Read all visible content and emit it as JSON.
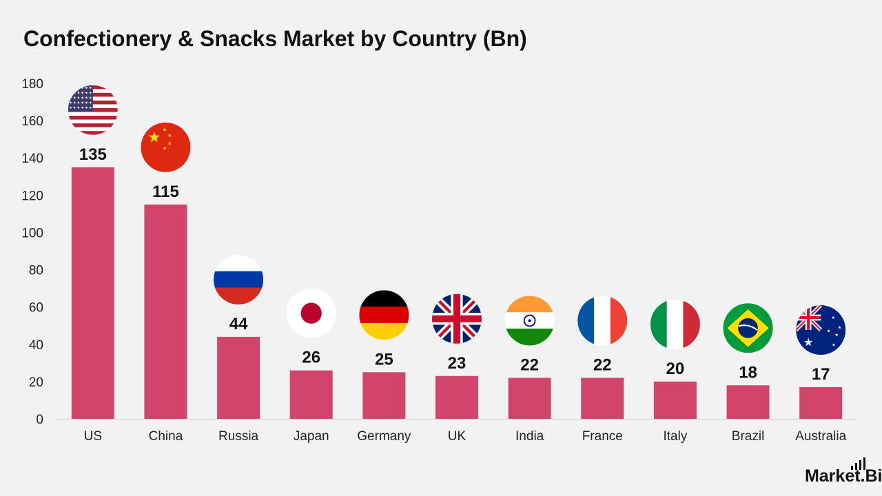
{
  "brand": {
    "text": "Market.Biz"
  },
  "colors": {
    "bar": "#d2456a",
    "background": "#f2f2f2",
    "axis": "#d0d0d0"
  },
  "chart_data": {
    "type": "bar",
    "title": "Confectionery & Snacks Market by Country (Bn)",
    "xlabel": "",
    "ylabel": "",
    "ylim": [
      0,
      180
    ],
    "yticks": [
      0,
      20,
      40,
      60,
      80,
      100,
      120,
      140,
      160,
      180
    ],
    "grid": false,
    "legend": "none",
    "categories": [
      "US",
      "China",
      "Russia",
      "Japan",
      "Germany",
      "UK",
      "India",
      "France",
      "Italy",
      "Brazil",
      "Australia"
    ],
    "values": [
      135,
      115,
      44,
      26,
      25,
      23,
      22,
      22,
      20,
      18,
      17
    ],
    "data_labels": [
      "135",
      "115",
      "44",
      "26",
      "25",
      "23",
      "22",
      "22",
      "20",
      "18",
      "17"
    ],
    "annotations": [
      "us-flag-icon",
      "china-flag-icon",
      "russia-flag-icon",
      "japan-flag-icon",
      "germany-flag-icon",
      "uk-flag-icon",
      "india-flag-icon",
      "france-flag-icon",
      "italy-flag-icon",
      "brazil-flag-icon",
      "australia-flag-icon"
    ]
  }
}
